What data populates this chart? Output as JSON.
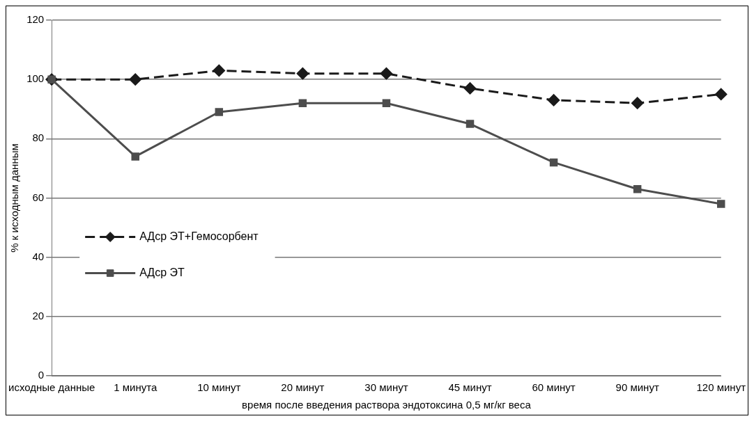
{
  "chart_data": {
    "type": "line",
    "xlabel": "время после введения раствора эндотоксина 0,5 мг/кг веса",
    "ylabel": "% к исходным данным",
    "categories": [
      "исходные данные",
      "1 минута",
      "10 минут",
      "20 минут",
      "30 минут",
      "45 минут",
      "60 минут",
      "90 минут",
      "120 минут"
    ],
    "series": [
      {
        "name": "АДср ЭТ+Гемосорбент",
        "color": "#1a1a1a",
        "marker": "diamond",
        "line_style": "dashed",
        "values": [
          100,
          100,
          103,
          102,
          102,
          97,
          93,
          92,
          95
        ]
      },
      {
        "name": "АДср ЭТ",
        "color": "#4d4d4d",
        "marker": "square",
        "line_style": "solid",
        "values": [
          100,
          74,
          89,
          92,
          92,
          85,
          72,
          63,
          58
        ]
      }
    ],
    "ylim": [
      0,
      120
    ],
    "yticks": [
      0,
      20,
      40,
      60,
      80,
      100,
      120
    ],
    "grid": "y",
    "legend": "left"
  }
}
